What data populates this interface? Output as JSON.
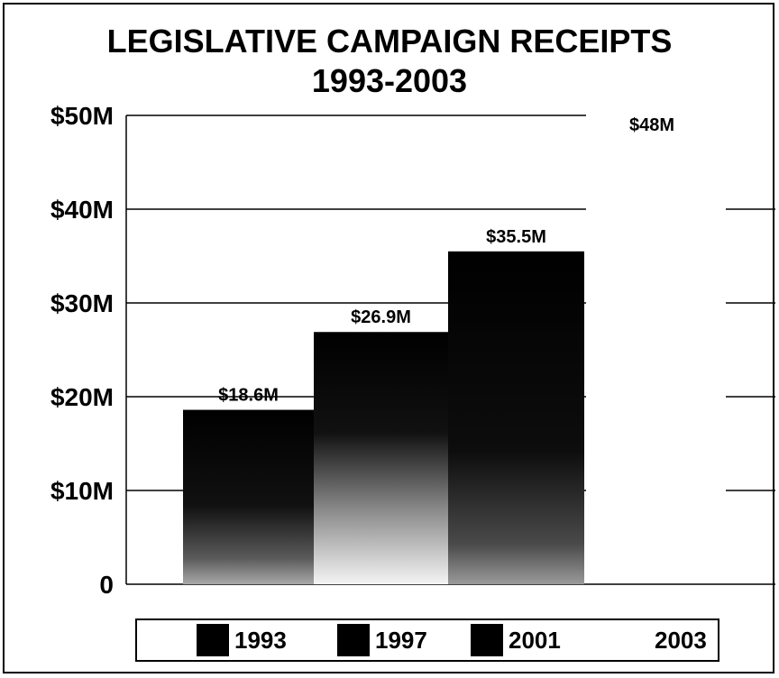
{
  "chart_data": {
    "type": "bar",
    "title": "LEGISLATIVE CAMPAIGN RECEIPTS",
    "subtitle": "1993-2003",
    "categories": [
      "1993",
      "1997",
      "2001",
      "2003"
    ],
    "values": [
      18.6,
      26.9,
      35.5,
      48
    ],
    "data_labels": [
      "$18.6M",
      "$26.9M",
      "$35.5M",
      "$48M"
    ],
    "ylim": [
      0,
      50
    ],
    "yticks": [
      0,
      10,
      20,
      30,
      40,
      50
    ],
    "ytick_labels": [
      "0",
      "$10M",
      "$20M",
      "$30M",
      "$40M",
      "$50M"
    ],
    "grid": true,
    "legend_position": "bottom",
    "legend": [
      "1993",
      "1997",
      "2001",
      "2003"
    ],
    "bar_color": "#000000"
  }
}
